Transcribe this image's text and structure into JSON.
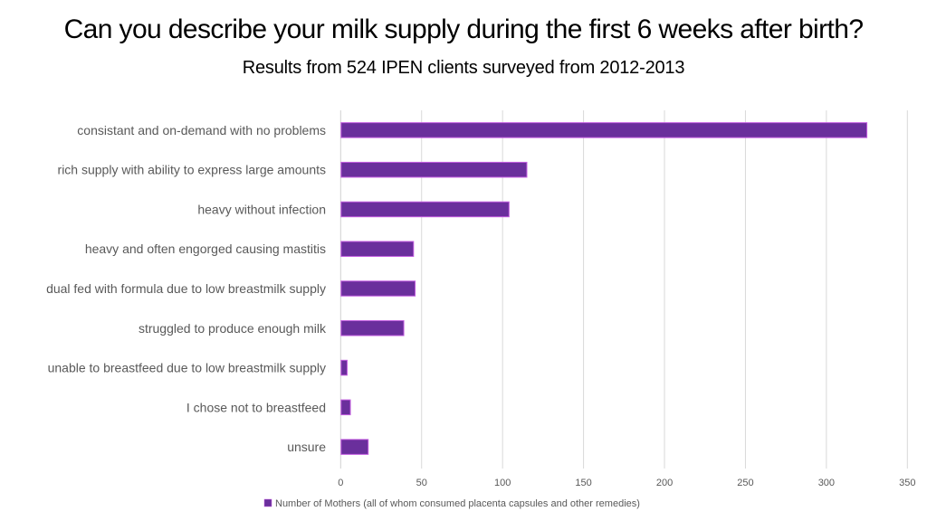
{
  "chart_data": {
    "type": "bar",
    "orientation": "horizontal",
    "title": "Can you describe your milk supply during the first 6 weeks after birth?",
    "subtitle": "Results from 524 IPEN clients surveyed from 2012-2013",
    "categories": [
      "consistant and on-demand with no problems",
      "rich supply with ability to express large amounts",
      "heavy without infection",
      "heavy and often engorged causing mastitis",
      "dual fed with formula due to low breastmilk supply",
      "struggled to produce enough milk",
      "unable to breastfeed due to low breastmilk supply",
      "I chose not to breastfeed",
      "unsure"
    ],
    "series": [
      {
        "name": "Number of Mothers (all of whom consumed placenta capsules and other remedies)",
        "values": [
          325,
          115,
          104,
          45,
          46,
          39,
          4,
          6,
          17
        ],
        "color": "#6a2f9c",
        "edge_color": "#c35ce0"
      }
    ],
    "xlim": [
      0,
      350
    ],
    "xticks": [
      "0",
      "50",
      "100",
      "150",
      "200",
      "250",
      "300",
      "350"
    ],
    "xlabel": "",
    "ylabel": "",
    "grid": true,
    "grid_color": "#d9d9d9",
    "legend": "bottom"
  }
}
